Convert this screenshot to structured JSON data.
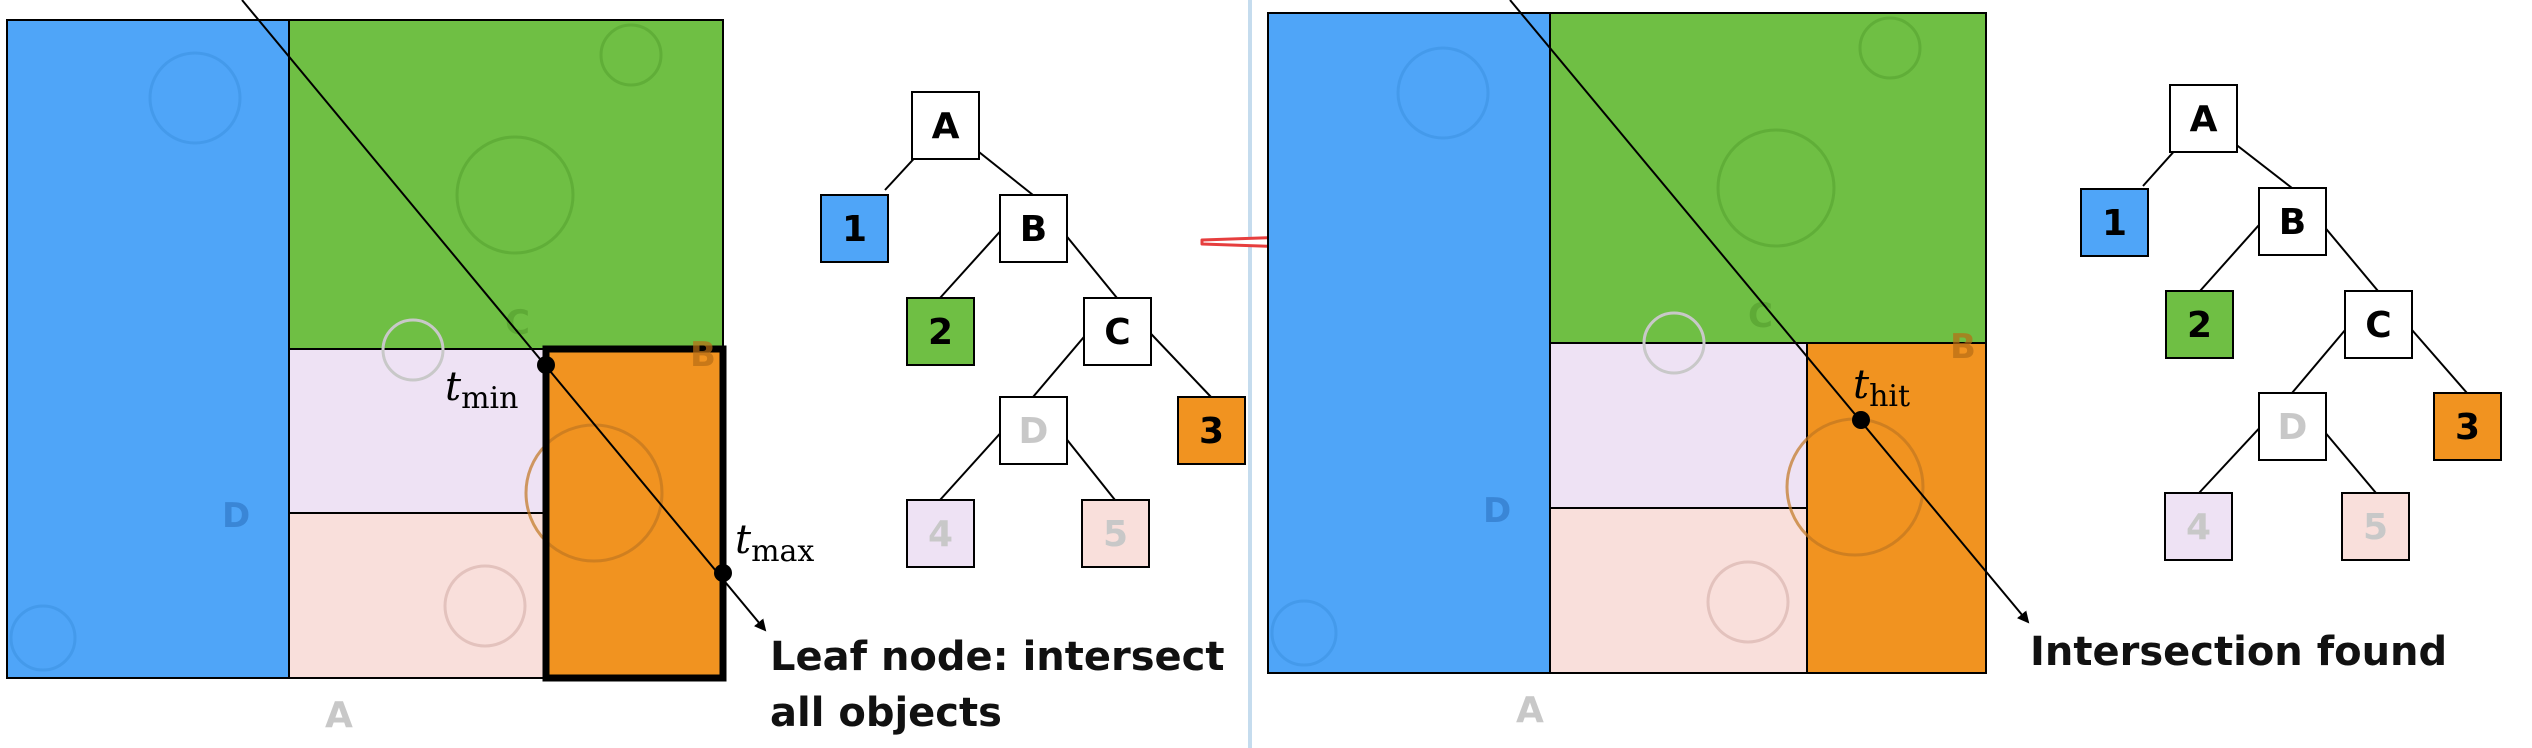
{
  "colors": {
    "blue": "#4fa5f8",
    "green": "#6fbf44",
    "lavender": "#eee2f4",
    "pink": "#f9dfdb",
    "orange": "#f19320",
    "faint_text": "#c8c8c8",
    "divider": "#c5dcee",
    "arrow_red": "#e63e3e"
  },
  "left_panel": {
    "region_labels": {
      "a": "A",
      "b": "B",
      "c": "C",
      "d": "D"
    },
    "t_min": {
      "symbol": "t",
      "subscript": "min"
    },
    "t_max": {
      "symbol": "t",
      "subscript": "max"
    },
    "caption_line1": "Leaf node: intersect",
    "caption_line2": "all objects",
    "tree": {
      "a": "A",
      "b": "B",
      "c": "C",
      "d": "D",
      "n1": "1",
      "n2": "2",
      "n3": "3",
      "n4": "4",
      "n5": "5"
    }
  },
  "right_panel": {
    "region_labels": {
      "a": "A",
      "b": "B",
      "c": "C",
      "d": "D"
    },
    "t_hit": {
      "symbol": "t",
      "subscript": "hit"
    },
    "caption": "Intersection found",
    "tree": {
      "a": "A",
      "b": "B",
      "c": "C",
      "d": "D",
      "n1": "1",
      "n2": "2",
      "n3": "3",
      "n4": "4",
      "n5": "5"
    }
  }
}
